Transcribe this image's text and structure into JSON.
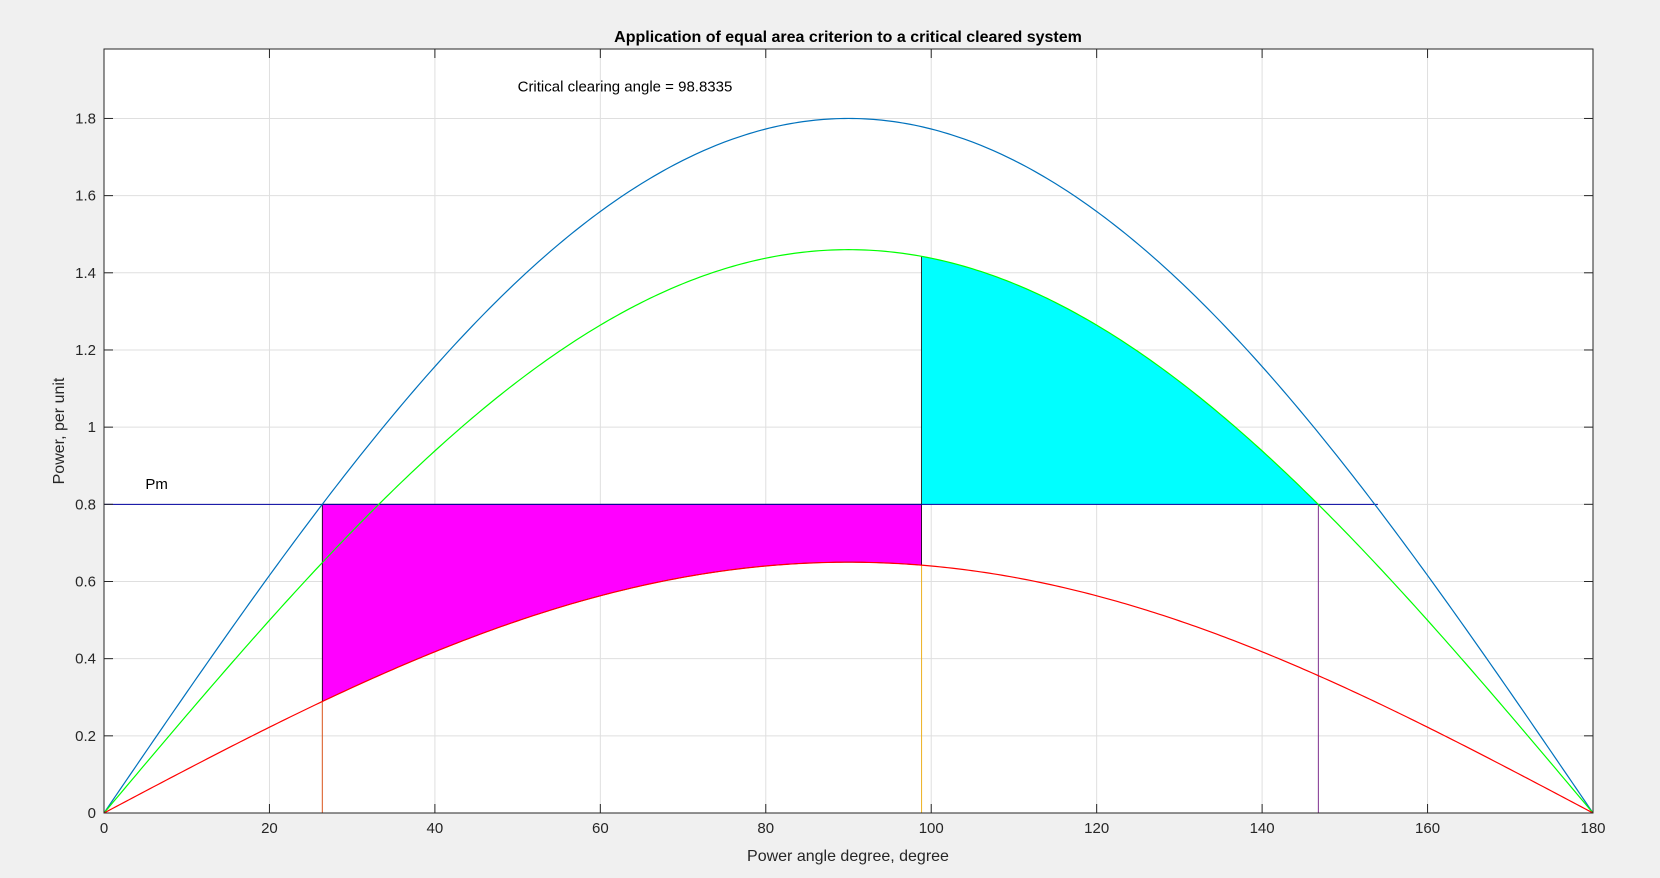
{
  "chart_data": {
    "type": "line",
    "title": "Application of equal area criterion to a critical cleared system",
    "xlabel": "Power angle degree, degree",
    "ylabel": "Power, per unit",
    "xlim": [
      0,
      180
    ],
    "ylim": [
      0,
      1.98
    ],
    "xticks": [
      0,
      20,
      40,
      60,
      80,
      100,
      120,
      140,
      160,
      180
    ],
    "yticks": [
      0,
      0.2,
      0.4,
      0.6,
      0.8,
      1,
      1.2,
      1.4,
      1.6,
      1.8
    ],
    "xtick_labels": [
      "0",
      "20",
      "40",
      "60",
      "80",
      "100",
      "120",
      "140",
      "160",
      "180"
    ],
    "ytick_labels": [
      "0",
      "0.2",
      "0.4",
      "0.6",
      "0.8",
      "1",
      "1.2",
      "1.4",
      "1.6",
      "1.8"
    ],
    "grid": true,
    "series": [
      {
        "key": "prefault",
        "amplitude": 1.8,
        "color": "#0072bd",
        "values": [
          [
            0,
            0
          ],
          [
            10,
            0.313
          ],
          [
            20,
            0.616
          ],
          [
            30,
            0.9
          ],
          [
            40,
            1.157
          ],
          [
            50,
            1.379
          ],
          [
            60,
            1.559
          ],
          [
            70,
            1.691
          ],
          [
            80,
            1.773
          ],
          [
            90,
            1.8
          ],
          [
            100,
            1.773
          ],
          [
            110,
            1.691
          ],
          [
            120,
            1.559
          ],
          [
            130,
            1.379
          ],
          [
            140,
            1.157
          ],
          [
            150,
            0.9
          ],
          [
            160,
            0.616
          ],
          [
            170,
            0.313
          ],
          [
            180,
            0
          ]
        ]
      },
      {
        "key": "postfault",
        "amplitude": 1.46,
        "color": "#00ff00",
        "values": [
          [
            0,
            0
          ],
          [
            10,
            0.254
          ],
          [
            20,
            0.499
          ],
          [
            30,
            0.73
          ],
          [
            40,
            0.938
          ],
          [
            50,
            1.118
          ],
          [
            60,
            1.264
          ],
          [
            70,
            1.372
          ],
          [
            80,
            1.438
          ],
          [
            90,
            1.46
          ],
          [
            100,
            1.438
          ],
          [
            110,
            1.372
          ],
          [
            120,
            1.264
          ],
          [
            130,
            1.118
          ],
          [
            140,
            0.938
          ],
          [
            150,
            0.73
          ],
          [
            160,
            0.499
          ],
          [
            170,
            0.254
          ],
          [
            180,
            0
          ]
        ]
      },
      {
        "key": "duringfault",
        "amplitude": 0.65,
        "color": "#ff0000",
        "values": [
          [
            0,
            0
          ],
          [
            10,
            0.113
          ],
          [
            20,
            0.222
          ],
          [
            30,
            0.325
          ],
          [
            40,
            0.418
          ],
          [
            50,
            0.498
          ],
          [
            60,
            0.563
          ],
          [
            70,
            0.611
          ],
          [
            80,
            0.64
          ],
          [
            90,
            0.65
          ],
          [
            100,
            0.64
          ],
          [
            110,
            0.611
          ],
          [
            120,
            0.563
          ],
          [
            130,
            0.498
          ],
          [
            140,
            0.418
          ],
          [
            150,
            0.325
          ],
          [
            160,
            0.222
          ],
          [
            170,
            0.113
          ],
          [
            180,
            0
          ]
        ]
      }
    ],
    "pm": {
      "value": 0.8,
      "label": "Pm",
      "label_x": 5,
      "label_y": 0.84,
      "x_end": 154,
      "color": "#0000a0"
    },
    "delta0": 26.39,
    "delta_c": 98.8335,
    "delta_max": 146.8,
    "accelerating_area_color": "#ff00ff",
    "decelerating_area_color": "#00ffff",
    "vline_colors": [
      "#d95319",
      "#edb120",
      "#7e2f8e"
    ],
    "annotation": {
      "text": "Critical clearing angle = 98.8335",
      "x": 50,
      "y": 1.87
    }
  }
}
